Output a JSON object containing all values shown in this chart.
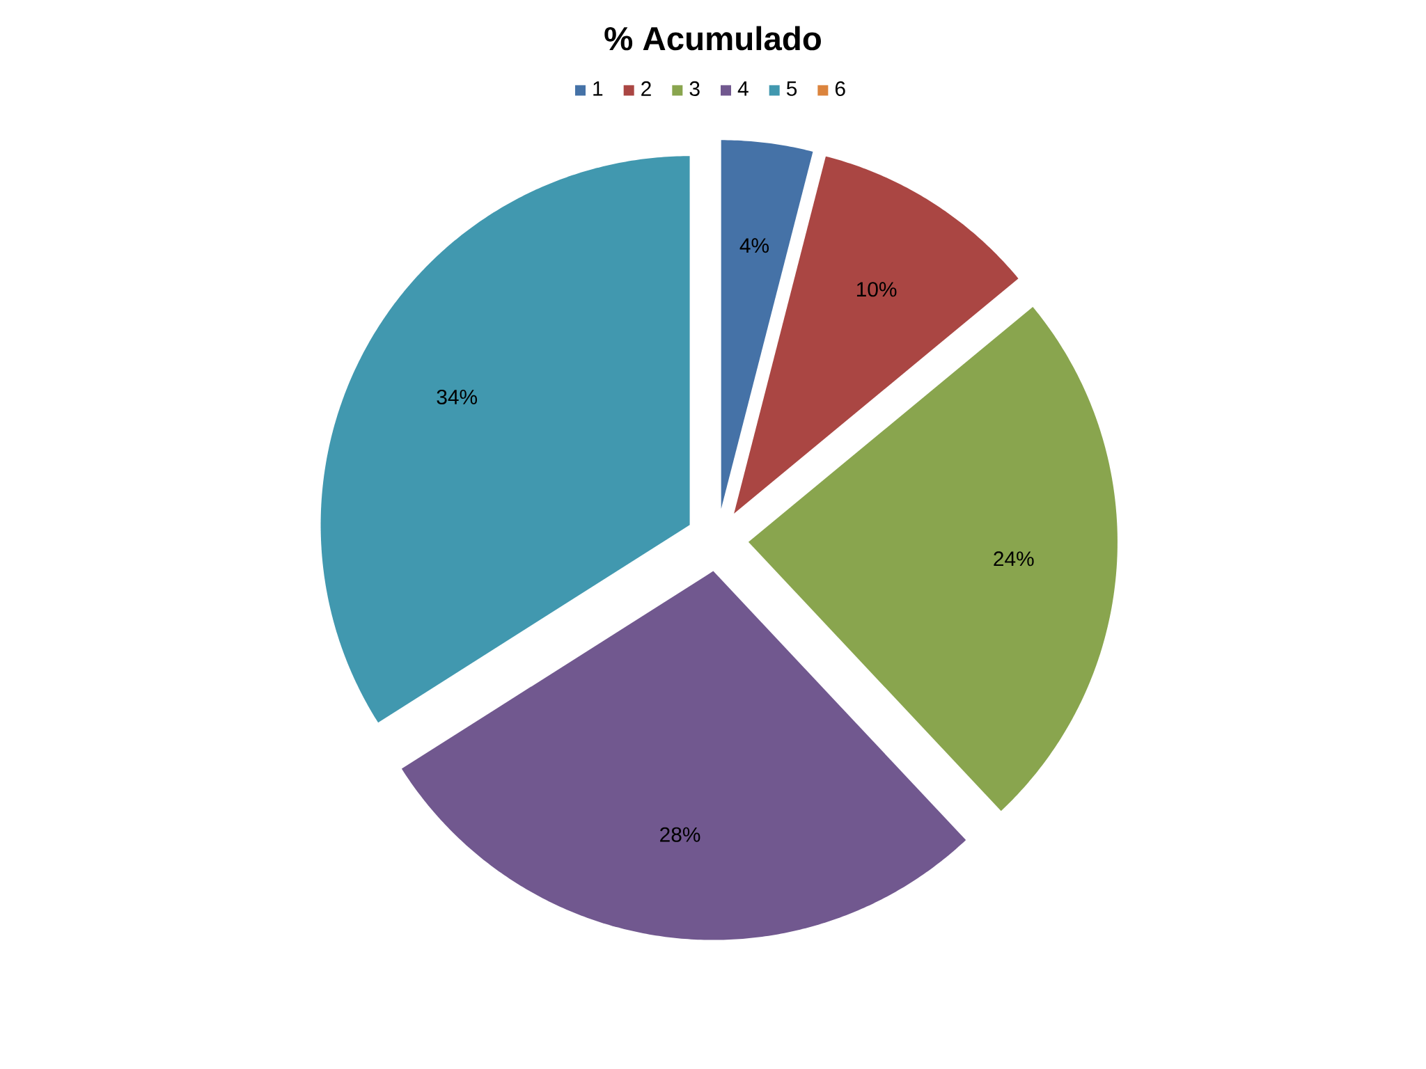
{
  "chart_data": {
    "type": "pie",
    "title": "% Acumulado",
    "categories": [
      "1",
      "2",
      "3",
      "4",
      "5",
      "6"
    ],
    "values": [
      4,
      10,
      24,
      28,
      34,
      0
    ],
    "colors": [
      "#4572a7",
      "#aa4643",
      "#89a54e",
      "#71588f",
      "#4198af",
      "#db843d"
    ],
    "value_labels": [
      "4%",
      "10%",
      "24%",
      "28%",
      "34%",
      null
    ],
    "legend": "top"
  }
}
